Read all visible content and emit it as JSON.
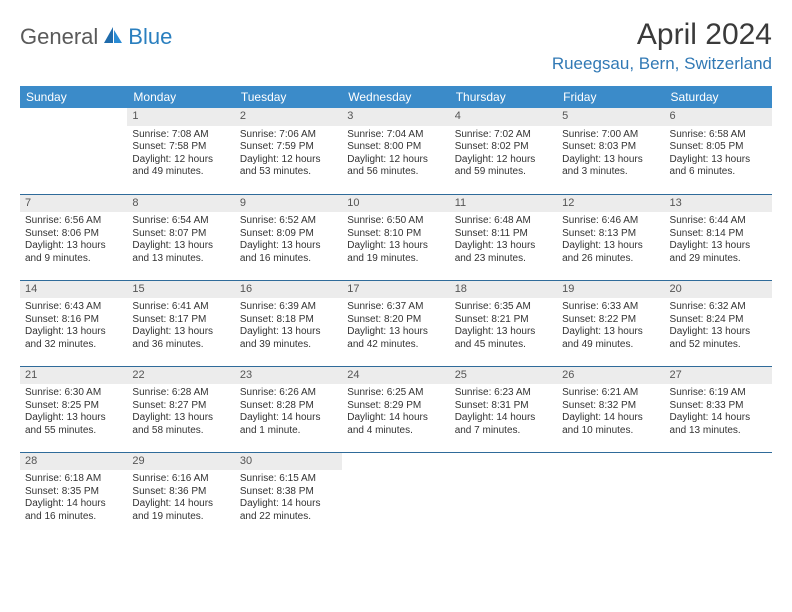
{
  "brand": {
    "general": "General",
    "blue": "Blue"
  },
  "title": "April 2024",
  "location": "Rueegsau, Bern, Switzerland",
  "colors": {
    "header_bg": "#3b8bc9",
    "header_fg": "#ffffff",
    "daynum_bg": "#ececec",
    "location_fg": "#3179b5",
    "rule": "#2f6b9a"
  },
  "dayHeaders": [
    "Sunday",
    "Monday",
    "Tuesday",
    "Wednesday",
    "Thursday",
    "Friday",
    "Saturday"
  ],
  "weeks": [
    [
      {
        "n": "",
        "sr": "",
        "ss": "",
        "dl": ""
      },
      {
        "n": "1",
        "sr": "Sunrise: 7:08 AM",
        "ss": "Sunset: 7:58 PM",
        "dl": "Daylight: 12 hours and 49 minutes."
      },
      {
        "n": "2",
        "sr": "Sunrise: 7:06 AM",
        "ss": "Sunset: 7:59 PM",
        "dl": "Daylight: 12 hours and 53 minutes."
      },
      {
        "n": "3",
        "sr": "Sunrise: 7:04 AM",
        "ss": "Sunset: 8:00 PM",
        "dl": "Daylight: 12 hours and 56 minutes."
      },
      {
        "n": "4",
        "sr": "Sunrise: 7:02 AM",
        "ss": "Sunset: 8:02 PM",
        "dl": "Daylight: 12 hours and 59 minutes."
      },
      {
        "n": "5",
        "sr": "Sunrise: 7:00 AM",
        "ss": "Sunset: 8:03 PM",
        "dl": "Daylight: 13 hours and 3 minutes."
      },
      {
        "n": "6",
        "sr": "Sunrise: 6:58 AM",
        "ss": "Sunset: 8:05 PM",
        "dl": "Daylight: 13 hours and 6 minutes."
      }
    ],
    [
      {
        "n": "7",
        "sr": "Sunrise: 6:56 AM",
        "ss": "Sunset: 8:06 PM",
        "dl": "Daylight: 13 hours and 9 minutes."
      },
      {
        "n": "8",
        "sr": "Sunrise: 6:54 AM",
        "ss": "Sunset: 8:07 PM",
        "dl": "Daylight: 13 hours and 13 minutes."
      },
      {
        "n": "9",
        "sr": "Sunrise: 6:52 AM",
        "ss": "Sunset: 8:09 PM",
        "dl": "Daylight: 13 hours and 16 minutes."
      },
      {
        "n": "10",
        "sr": "Sunrise: 6:50 AM",
        "ss": "Sunset: 8:10 PM",
        "dl": "Daylight: 13 hours and 19 minutes."
      },
      {
        "n": "11",
        "sr": "Sunrise: 6:48 AM",
        "ss": "Sunset: 8:11 PM",
        "dl": "Daylight: 13 hours and 23 minutes."
      },
      {
        "n": "12",
        "sr": "Sunrise: 6:46 AM",
        "ss": "Sunset: 8:13 PM",
        "dl": "Daylight: 13 hours and 26 minutes."
      },
      {
        "n": "13",
        "sr": "Sunrise: 6:44 AM",
        "ss": "Sunset: 8:14 PM",
        "dl": "Daylight: 13 hours and 29 minutes."
      }
    ],
    [
      {
        "n": "14",
        "sr": "Sunrise: 6:43 AM",
        "ss": "Sunset: 8:16 PM",
        "dl": "Daylight: 13 hours and 32 minutes."
      },
      {
        "n": "15",
        "sr": "Sunrise: 6:41 AM",
        "ss": "Sunset: 8:17 PM",
        "dl": "Daylight: 13 hours and 36 minutes."
      },
      {
        "n": "16",
        "sr": "Sunrise: 6:39 AM",
        "ss": "Sunset: 8:18 PM",
        "dl": "Daylight: 13 hours and 39 minutes."
      },
      {
        "n": "17",
        "sr": "Sunrise: 6:37 AM",
        "ss": "Sunset: 8:20 PM",
        "dl": "Daylight: 13 hours and 42 minutes."
      },
      {
        "n": "18",
        "sr": "Sunrise: 6:35 AM",
        "ss": "Sunset: 8:21 PM",
        "dl": "Daylight: 13 hours and 45 minutes."
      },
      {
        "n": "19",
        "sr": "Sunrise: 6:33 AM",
        "ss": "Sunset: 8:22 PM",
        "dl": "Daylight: 13 hours and 49 minutes."
      },
      {
        "n": "20",
        "sr": "Sunrise: 6:32 AM",
        "ss": "Sunset: 8:24 PM",
        "dl": "Daylight: 13 hours and 52 minutes."
      }
    ],
    [
      {
        "n": "21",
        "sr": "Sunrise: 6:30 AM",
        "ss": "Sunset: 8:25 PM",
        "dl": "Daylight: 13 hours and 55 minutes."
      },
      {
        "n": "22",
        "sr": "Sunrise: 6:28 AM",
        "ss": "Sunset: 8:27 PM",
        "dl": "Daylight: 13 hours and 58 minutes."
      },
      {
        "n": "23",
        "sr": "Sunrise: 6:26 AM",
        "ss": "Sunset: 8:28 PM",
        "dl": "Daylight: 14 hours and 1 minute."
      },
      {
        "n": "24",
        "sr": "Sunrise: 6:25 AM",
        "ss": "Sunset: 8:29 PM",
        "dl": "Daylight: 14 hours and 4 minutes."
      },
      {
        "n": "25",
        "sr": "Sunrise: 6:23 AM",
        "ss": "Sunset: 8:31 PM",
        "dl": "Daylight: 14 hours and 7 minutes."
      },
      {
        "n": "26",
        "sr": "Sunrise: 6:21 AM",
        "ss": "Sunset: 8:32 PM",
        "dl": "Daylight: 14 hours and 10 minutes."
      },
      {
        "n": "27",
        "sr": "Sunrise: 6:19 AM",
        "ss": "Sunset: 8:33 PM",
        "dl": "Daylight: 14 hours and 13 minutes."
      }
    ],
    [
      {
        "n": "28",
        "sr": "Sunrise: 6:18 AM",
        "ss": "Sunset: 8:35 PM",
        "dl": "Daylight: 14 hours and 16 minutes."
      },
      {
        "n": "29",
        "sr": "Sunrise: 6:16 AM",
        "ss": "Sunset: 8:36 PM",
        "dl": "Daylight: 14 hours and 19 minutes."
      },
      {
        "n": "30",
        "sr": "Sunrise: 6:15 AM",
        "ss": "Sunset: 8:38 PM",
        "dl": "Daylight: 14 hours and 22 minutes."
      },
      {
        "n": "",
        "sr": "",
        "ss": "",
        "dl": ""
      },
      {
        "n": "",
        "sr": "",
        "ss": "",
        "dl": ""
      },
      {
        "n": "",
        "sr": "",
        "ss": "",
        "dl": ""
      },
      {
        "n": "",
        "sr": "",
        "ss": "",
        "dl": ""
      }
    ]
  ]
}
